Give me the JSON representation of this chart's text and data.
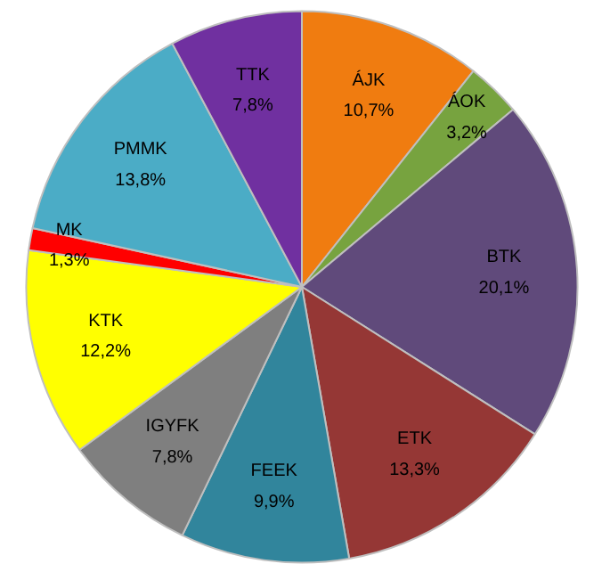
{
  "chart_data": {
    "type": "pie",
    "categories": [
      "ÁJK",
      "ÁOK",
      "BTK",
      "ETK",
      "FEEK",
      "IGYFK",
      "KTK",
      "MK",
      "PMMK",
      "TTK"
    ],
    "values": [
      10.7,
      3.2,
      20.1,
      13.3,
      9.9,
      7.8,
      12.2,
      1.3,
      13.8,
      7.8
    ],
    "value_labels": [
      "10,7%",
      "3,2%",
      "20,1%",
      "13,3%",
      "9,9%",
      "7,8%",
      "12,2%",
      "1,3%",
      "13,8%",
      "7,8%"
    ],
    "colors": [
      "#f07c10",
      "#77a33f",
      "#604a7b",
      "#953735",
      "#31859c",
      "#7f7f7f",
      "#ffff00",
      "#ff0000",
      "#4bacc6",
      "#7030a0"
    ]
  }
}
